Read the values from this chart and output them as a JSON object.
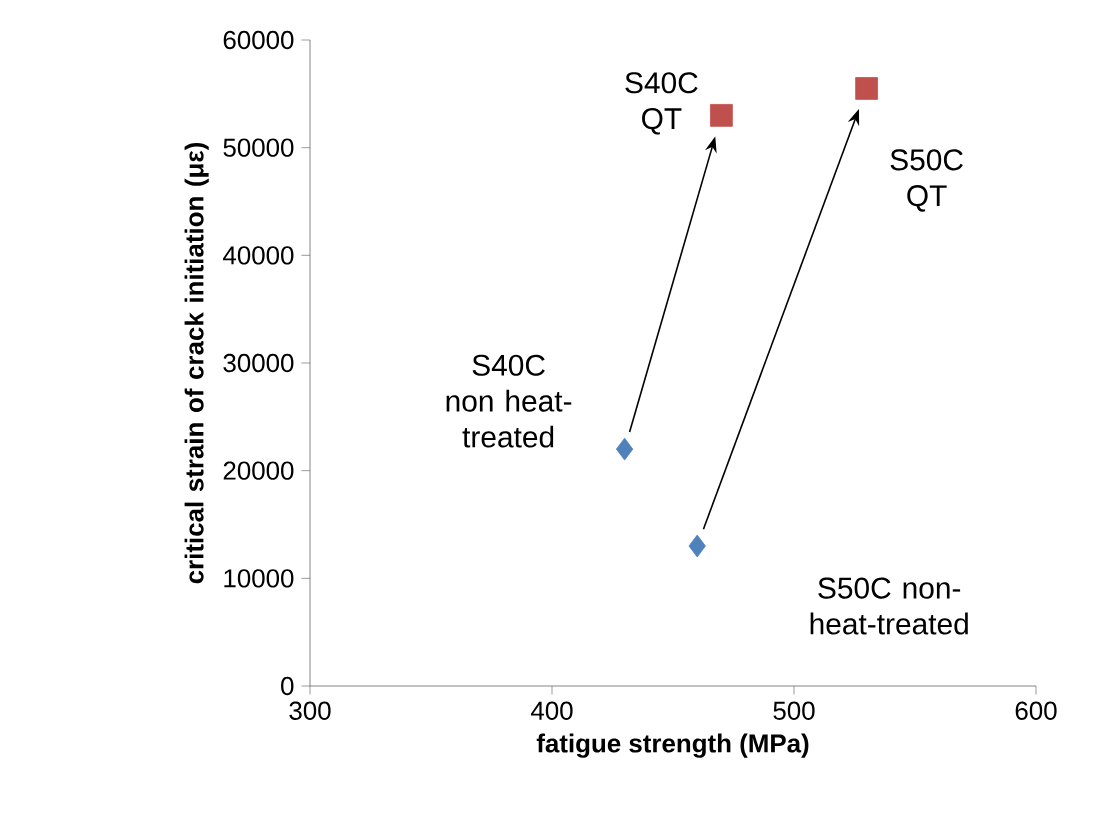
{
  "chart_data": {
    "type": "scatter",
    "xlabel": "fatigue strength (MPa)",
    "ylabel": "critical strain of crack initiation (με)",
    "xlim": [
      300,
      600
    ],
    "xticks": [
      300,
      400,
      500,
      600
    ],
    "ylim": [
      0,
      60000
    ],
    "yticks": [
      0,
      10000,
      20000,
      30000,
      40000,
      50000,
      60000
    ],
    "grid": false,
    "series": [
      {
        "color": "#4f81bd",
        "marker": "diamond",
        "x": [
          430,
          460
        ],
        "values": [
          22000,
          13000
        ]
      },
      {
        "color": "#c0504d",
        "marker": "square",
        "x": [
          470,
          530
        ],
        "values": [
          53000,
          55500
        ]
      }
    ],
    "annotations": [
      "S40C QT",
      "S50C QT",
      "S40C non heat-treated",
      "S50C non-heat-treated"
    ]
  }
}
